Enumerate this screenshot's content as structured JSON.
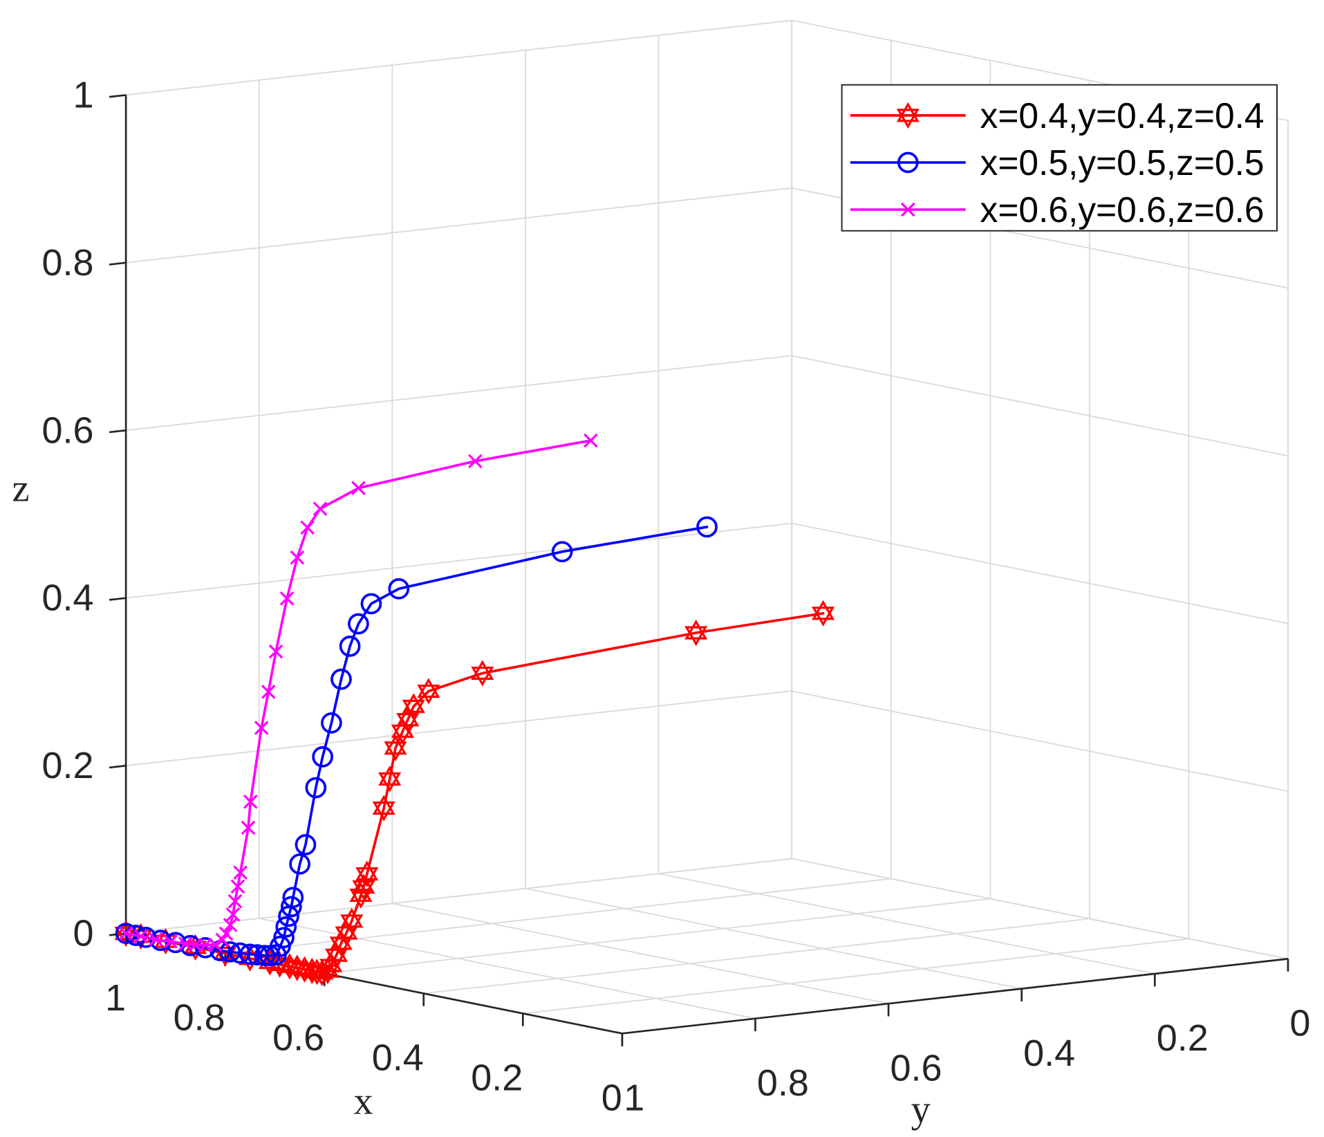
{
  "chart_data": {
    "type": "line",
    "xlabel": "x",
    "ylabel": "y",
    "zlabel": "z",
    "xlim": [
      0,
      1
    ],
    "ylim": [
      0,
      1
    ],
    "zlim": [
      0,
      1
    ],
    "grid": true,
    "legend_position": "top-right",
    "axes": {
      "x": {
        "ticks": [
          0,
          0.2,
          0.4,
          0.6,
          0.8,
          1
        ],
        "ticklabels": [
          "0",
          "0.2",
          "0.4",
          "0.6",
          "0.8",
          "1"
        ]
      },
      "y": {
        "ticks": [
          0,
          0.2,
          0.4,
          0.6,
          0.8,
          1
        ],
        "ticklabels": [
          "0",
          "0.2",
          "0.4",
          "0.6",
          "0.8",
          "1"
        ]
      },
      "z": {
        "ticks": [
          0,
          0.2,
          0.4,
          0.6,
          0.8,
          1
        ],
        "ticklabels": [
          "0",
          "0.2",
          "0.4",
          "0.6",
          "0.8",
          "1"
        ]
      }
    },
    "series": [
      {
        "name": "x=0.4,y=0.4,z=0.4",
        "color": "#ff0000",
        "marker": "hexagram",
        "x": [
          0.4,
          0.42,
          0.46,
          0.48,
          0.49,
          0.495,
          0.5,
          0.505,
          0.51,
          0.515,
          0.541,
          0.545,
          0.548,
          0.561,
          0.569,
          0.577,
          0.584,
          0.592,
          0.596,
          0.605,
          0.615,
          0.625,
          0.64,
          0.655,
          0.67,
          0.69,
          0.71,
          0.75,
          0.8,
          0.86,
          0.92,
          0.97,
          1.0
        ],
        "y": [
          0.4,
          0.576,
          0.867,
          0.933,
          0.948,
          0.953,
          0.957,
          0.964,
          0.969,
          0.974,
          0.98,
          0.982,
          0.984,
          0.988,
          0.99,
          0.992,
          0.994,
          0.996,
          0.998,
          1,
          1,
          1,
          1,
          1,
          1,
          1,
          1,
          1,
          1,
          1,
          1,
          1,
          1
        ],
        "z": [
          0.4,
          0.39,
          0.363,
          0.345,
          0.327,
          0.311,
          0.297,
          0.277,
          0.24,
          0.205,
          0.124,
          0.108,
          0.098,
          0.066,
          0.051,
          0.038,
          0.023,
          0.01,
          0.003,
          0,
          0,
          0,
          0,
          0,
          0,
          0,
          0,
          0,
          0,
          0,
          0,
          0,
          0
        ]
      },
      {
        "name": "x=0.5,y=0.5,z=0.5",
        "color": "#0000ff",
        "marker": "circle",
        "x": [
          0.5,
          0.51,
          0.54,
          0.55,
          0.565,
          0.578,
          0.593,
          0.61,
          0.625,
          0.636,
          0.654,
          0.663,
          0.674,
          0.676,
          0.68,
          0.684,
          0.687,
          0.693,
          0.7,
          0.71,
          0.72,
          0.735,
          0.75,
          0.77,
          0.79,
          0.81,
          0.84,
          0.87,
          0.9,
          0.93,
          0.96,
          0.98,
          1.0
        ],
        "y": [
          0.5,
          0.71,
          0.933,
          0.967,
          0.975,
          0.978,
          0.98,
          0.982,
          0.984,
          0.986,
          0.988,
          0.99,
          0.992,
          0.993,
          0.994,
          0.995,
          0.996,
          0.997,
          0.998,
          1,
          1,
          1,
          1,
          1,
          1,
          1,
          1,
          1,
          1,
          1,
          1,
          1,
          1
        ],
        "z": [
          0.5,
          0.488,
          0.46,
          0.444,
          0.419,
          0.391,
          0.35,
          0.296,
          0.254,
          0.216,
          0.146,
          0.122,
          0.081,
          0.07,
          0.058,
          0.045,
          0.032,
          0.021,
          0.01,
          0.008,
          0.007,
          0.006,
          0.005,
          0.004,
          0.003,
          0.002,
          0.002,
          0.001,
          0.001,
          0,
          0,
          0,
          0
        ]
      },
      {
        "name": "x=0.6,y=0.6,z=0.6",
        "color": "#ff00ff",
        "marker": "x",
        "x": [
          0.6,
          0.61,
          0.64,
          0.669,
          0.681,
          0.695,
          0.709,
          0.726,
          0.737,
          0.747,
          0.765,
          0.767,
          0.78,
          0.784,
          0.788,
          0.791,
          0.795,
          0.802,
          0.808,
          0.82,
          0.84,
          0.86,
          0.88,
          0.91,
          0.94,
          0.97,
          1.0
        ],
        "y": [
          0.6,
          0.766,
          0.919,
          0.955,
          0.965,
          0.97,
          0.975,
          0.979,
          0.982,
          0.985,
          0.988,
          0.99,
          0.992,
          0.993,
          0.994,
          0.995,
          0.996,
          0.997,
          0.998,
          1,
          1,
          1,
          1,
          1,
          1,
          1,
          1
        ],
        "z": [
          0.6,
          0.589,
          0.567,
          0.542,
          0.519,
          0.482,
          0.432,
          0.367,
          0.318,
          0.274,
          0.184,
          0.153,
          0.098,
          0.081,
          0.063,
          0.047,
          0.034,
          0.023,
          0.015,
          0.008,
          0.005,
          0.003,
          0.002,
          0.001,
          0,
          0,
          0
        ]
      }
    ]
  }
}
